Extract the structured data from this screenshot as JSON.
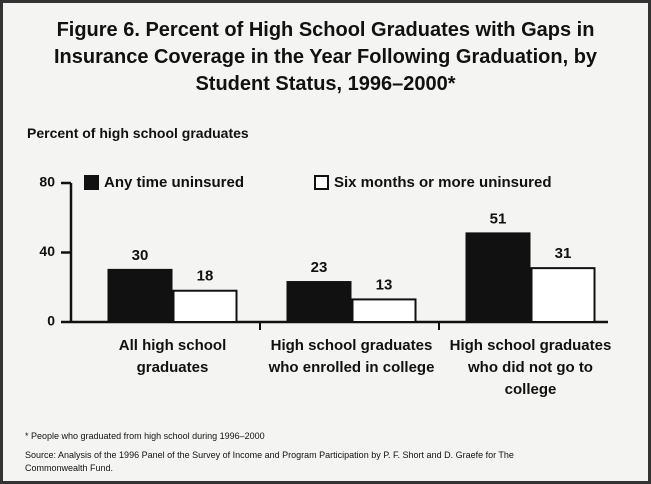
{
  "chart_data": {
    "type": "bar",
    "title": "Figure 6. Percent of High School Graduates with Gaps in Insurance Coverage in the Year Following Graduation, by Student Status, 1996–2000*",
    "y_label": "Percent of high school graduates",
    "categories": [
      "All high school graduates",
      "High school graduates who enrolled in college",
      "High school graduates who did not go to college"
    ],
    "series": [
      {
        "name": "Any time uninsured",
        "color": "#111111",
        "values": [
          30,
          23,
          51
        ]
      },
      {
        "name": "Six months or more uninsured",
        "color": "#ffffff",
        "values": [
          18,
          13,
          31
        ]
      }
    ],
    "ylim": [
      0,
      80
    ],
    "yticks": [
      0,
      40,
      80
    ],
    "footnote": "* People who graduated from high school during 1996–2000",
    "source": "Source: Analysis of the 1996 Panel of the Survey of Income and Program Participation by P. F. Short and D. Graefe for The Commonwealth Fund."
  }
}
